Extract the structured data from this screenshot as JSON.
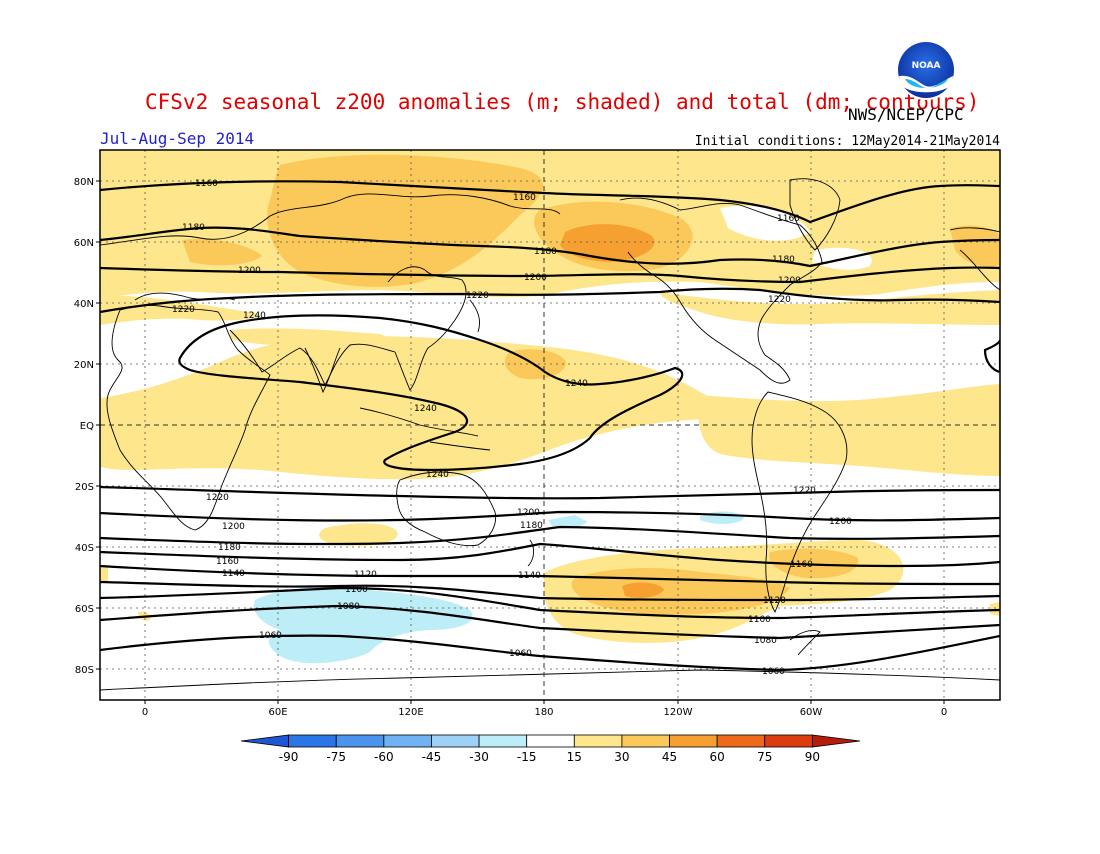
{
  "title": "CFSv2 seasonal z200 anomalies (m; shaded) and total (dm; contours)",
  "subtitle": "Jul-Aug-Sep 2014",
  "credit": "NWS/NCEP/CPC",
  "initial_conditions": "Initial conditions: 12May2014-21May2014",
  "logo_text": "NOAA",
  "lat_ticks": [
    "80N",
    "60N",
    "40N",
    "20N",
    "EQ",
    "20S",
    "40S",
    "60S",
    "80S"
  ],
  "lon_ticks": [
    "0",
    "60E",
    "120E",
    "180",
    "120W",
    "60W",
    "0"
  ],
  "colorbar": {
    "labels": [
      "-90",
      "-75",
      "-60",
      "-45",
      "-30",
      "-15",
      "15",
      "30",
      "45",
      "60",
      "75",
      "90"
    ],
    "colors": [
      "#1d57d6",
      "#2b76e6",
      "#4a94ee",
      "#70b3f5",
      "#9dd1f6",
      "#bdeef7",
      "#ffffff",
      "#fde68b",
      "#fbc95a",
      "#f6a031",
      "#ee6a1a",
      "#dd3c0e",
      "#b51c0c"
    ]
  },
  "chart_data": {
    "type": "heatmap",
    "title": "CFSv2 seasonal z200 anomalies (m; shaded) and total (dm; contours)",
    "period": "Jul-Aug-Sep 2014",
    "shading_units": "m",
    "contour_units": "dm",
    "contour_labels": [
      "1160",
      "1160",
      "1160",
      "1180",
      "1180",
      "1180",
      "1200",
      "1200",
      "1200",
      "1220",
      "1220",
      "1220",
      "1240",
      "1240",
      "1240",
      "1240",
      "1220",
      "1220",
      "1200",
      "1200",
      "1200",
      "1180",
      "1180",
      "1160",
      "1160",
      "1140",
      "1140",
      "1120",
      "1120",
      "1100",
      "1100",
      "1080",
      "1080",
      "1060",
      "1060",
      "1060"
    ]
  }
}
